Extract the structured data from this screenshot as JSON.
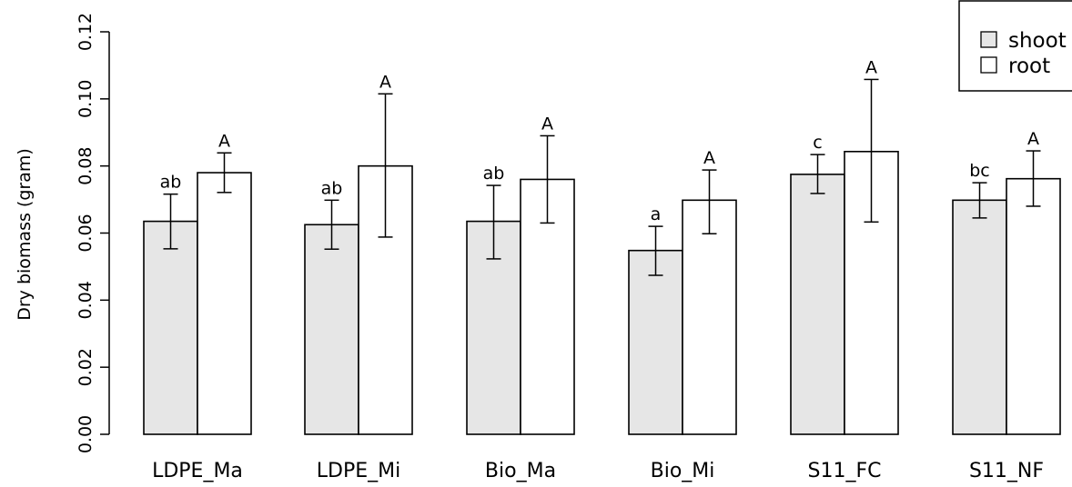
{
  "chart_data": {
    "type": "bar",
    "categories": [
      "LDPE_Ma",
      "LDPE_Mi",
      "Bio_Ma",
      "Bio_Mi",
      "S11_FC",
      "S11_NF"
    ],
    "series": [
      {
        "name": "shoot",
        "color": "#e6e6e6",
        "values": [
          0.0635,
          0.0625,
          0.0635,
          0.0548,
          0.0775,
          0.0698
        ],
        "err_low": [
          0.0553,
          0.0552,
          0.0523,
          0.0474,
          0.0718,
          0.0645
        ],
        "err_high": [
          0.0716,
          0.0698,
          0.0742,
          0.062,
          0.0834,
          0.075
        ],
        "labels": [
          "ab",
          "ab",
          "ab",
          "a",
          "c",
          "bc"
        ]
      },
      {
        "name": "root",
        "color": "#ffffff",
        "values": [
          0.078,
          0.08,
          0.076,
          0.0698,
          0.0843,
          0.0762
        ],
        "err_low": [
          0.0721,
          0.0588,
          0.063,
          0.0598,
          0.0633,
          0.068
        ],
        "err_high": [
          0.0839,
          0.1015,
          0.089,
          0.0788,
          0.1058,
          0.0845
        ],
        "labels": [
          "A",
          "A",
          "A",
          "A",
          "A",
          "A"
        ]
      }
    ],
    "ylabel": "Dry biomass (gram)",
    "ylim": [
      0,
      0.12
    ],
    "yticks": [
      "0.00",
      "0.02",
      "0.04",
      "0.06",
      "0.08",
      "0.10",
      "0.12"
    ],
    "grid": false,
    "legend_position": "top-right"
  }
}
